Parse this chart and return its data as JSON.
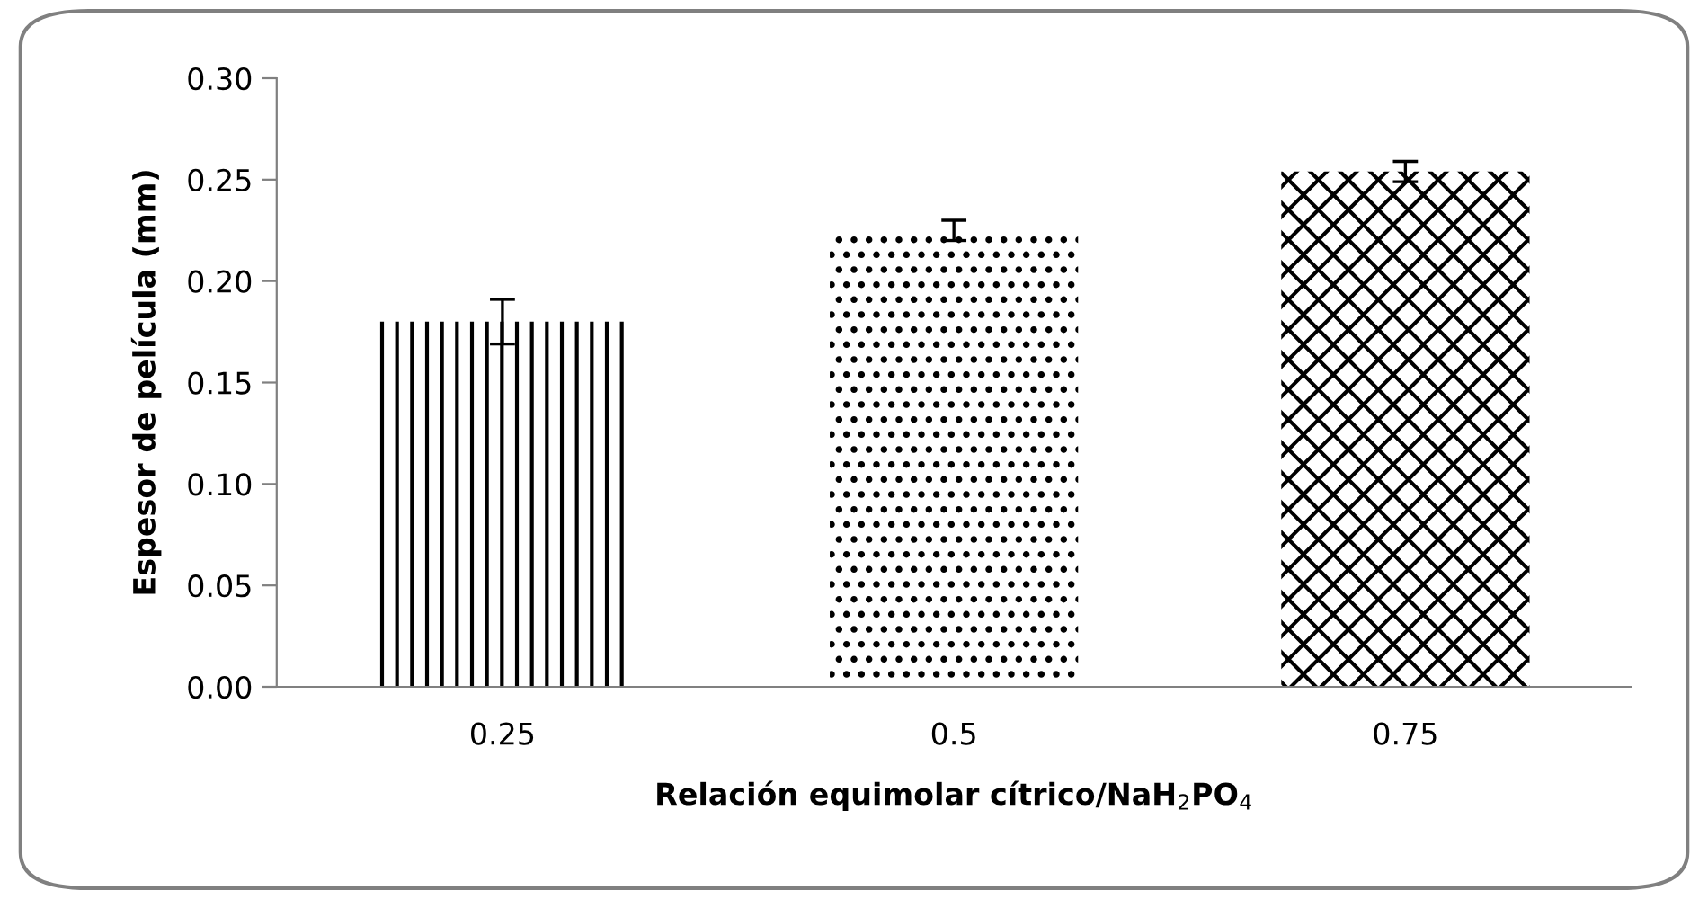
{
  "chart_data": {
    "type": "bar",
    "xlabel": "Relación equimolar cítrico/NaH$_{2}$PO$_{4}$",
    "ylabel": "Espesor de película (mm)",
    "categories": [
      "0.25",
      "0.5",
      "0.75"
    ],
    "values": [
      0.18,
      0.225,
      0.254
    ],
    "errors": [
      0.011,
      0.005,
      0.005
    ],
    "colors": [
      "#000000",
      "#000000",
      "#000000"
    ],
    "ylim": [
      0,
      0.3
    ],
    "yticks": [
      {
        "value": 0,
        "label": "0.00"
      },
      {
        "value": 0.05,
        "label": "0.05"
      },
      {
        "value": 0.1,
        "label": "0.10"
      },
      {
        "value": 0.15,
        "label": "0.15"
      },
      {
        "value": 0.2,
        "label": "0.20"
      },
      {
        "value": 0.25,
        "label": "0.25"
      },
      {
        "value": 0.3,
        "label": "0.30"
      }
    ],
    "grid": false,
    "legend": false
  }
}
